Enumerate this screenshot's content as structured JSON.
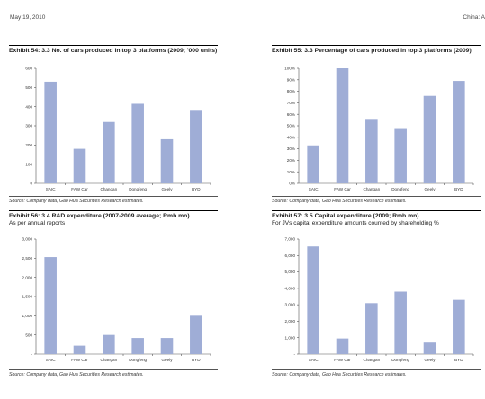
{
  "header": {
    "date": "May 19, 2010",
    "right_text": "China: A"
  },
  "exhibits": [
    {
      "title": "Exhibit 54: 3.3 No. of cars produced in top 3 platforms (2009; '000 units)",
      "subtitle": "",
      "source": "Source: Company data, Gao Hua Securities Research estimates."
    },
    {
      "title": "Exhibit 55: 3.3 Percentage of cars produced in top 3 platforms (2009)",
      "subtitle": "",
      "source": "Source: Company data, Gao Hua Securities Research estimates."
    },
    {
      "title": "Exhibit 56: 3.4 R&D expenditure (2007-2009 average; Rmb mn)",
      "subtitle": "As per annual reports",
      "source": "Source: Company data, Gao Hua Securities Research estimates."
    },
    {
      "title": "Exhibit 57: 3.5 Capital expenditure (2009; Rmb mn)",
      "subtitle": "For JVs capital expenditure amounts counted by shareholding %",
      "source": "Source: Company data, Gao Hua Securities Research estimates."
    }
  ],
  "chart_data": [
    {
      "type": "bar",
      "categories": [
        "SAIC",
        "FAW Car",
        "Changan",
        "Dongfeng",
        "Geely",
        "BYD"
      ],
      "values": [
        530,
        180,
        320,
        415,
        230,
        383
      ],
      "ylim": [
        0,
        600
      ],
      "yticks": [
        0,
        100,
        200,
        300,
        400,
        500,
        600
      ],
      "ytick_labels": [
        "0",
        "100",
        "200",
        "300",
        "400",
        "500",
        "600"
      ],
      "grid": false
    },
    {
      "type": "bar",
      "categories": [
        "SAIC",
        "FAW Car",
        "Changan",
        "Dongfeng",
        "Geely",
        "BYD"
      ],
      "values": [
        33,
        100,
        56,
        48,
        76,
        89
      ],
      "ylim": [
        0,
        100
      ],
      "yticks": [
        0,
        10,
        20,
        30,
        40,
        50,
        60,
        70,
        80,
        90,
        100
      ],
      "ytick_labels": [
        "0%",
        "10%",
        "20%",
        "30%",
        "40%",
        "50%",
        "60%",
        "70%",
        "80%",
        "90%",
        "100%"
      ],
      "grid": false
    },
    {
      "type": "bar",
      "categories": [
        "SAIC",
        "FAW Car",
        "Changan",
        "Dongfeng",
        "Geely",
        "BYD"
      ],
      "values": [
        2530,
        220,
        500,
        420,
        420,
        1000
      ],
      "ylim": [
        0,
        3000
      ],
      "yticks": [
        0,
        500,
        1000,
        1500,
        2000,
        2500,
        3000
      ],
      "ytick_labels": [
        "-",
        "500",
        "1,000",
        "1,500",
        "2,000",
        "2,500",
        "3,000"
      ],
      "grid": false
    },
    {
      "type": "bar",
      "categories": [
        "SAIC",
        "FAW Car",
        "Changan",
        "Dongfeng",
        "Geely",
        "BYD"
      ],
      "values": [
        6550,
        950,
        3100,
        3800,
        700,
        3300
      ],
      "ylim": [
        0,
        7000
      ],
      "yticks": [
        0,
        1000,
        2000,
        3000,
        4000,
        5000,
        6000,
        7000
      ],
      "ytick_labels": [
        "-",
        "1,000",
        "2,000",
        "3,000",
        "4,000",
        "5,000",
        "6,000",
        "7,000"
      ],
      "grid": false
    }
  ]
}
